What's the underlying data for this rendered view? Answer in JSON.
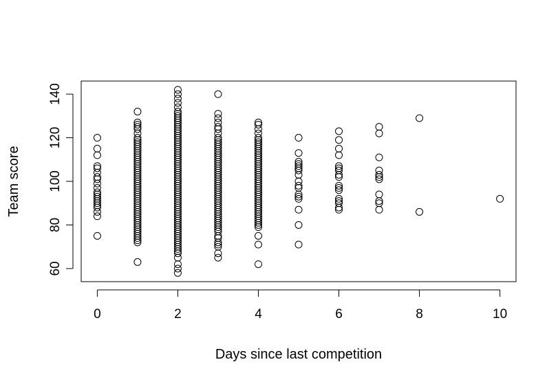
{
  "chart_data": {
    "type": "scatter",
    "title": "",
    "xlabel": "Days since last competition",
    "ylabel": "Team score",
    "xlim": [
      -0.4,
      10.4
    ],
    "ylim": [
      54,
      146
    ],
    "xticks": [
      0,
      2,
      4,
      6,
      8,
      10
    ],
    "yticks": [
      60,
      80,
      100,
      120,
      140
    ],
    "grid": false,
    "marker": "open-circle",
    "marker_color": "#000000",
    "points": [
      {
        "x": 0,
        "y": [
          75,
          84,
          86,
          88,
          89,
          90,
          91,
          92,
          93,
          94,
          95,
          97,
          99,
          101,
          102,
          104,
          106,
          107,
          112,
          115,
          120
        ]
      },
      {
        "x": 1,
        "y": [
          63,
          72,
          73,
          74,
          75,
          76,
          77,
          78,
          79,
          80,
          81,
          82,
          83,
          84,
          85,
          86,
          87,
          88,
          89,
          90,
          91,
          92,
          93,
          94,
          95,
          96,
          97,
          98,
          99,
          100,
          101,
          102,
          103,
          104,
          105,
          106,
          107,
          108,
          109,
          110,
          111,
          112,
          113,
          114,
          115,
          116,
          117,
          118,
          119,
          120,
          122,
          124,
          125,
          126,
          127,
          132
        ]
      },
      {
        "x": 2,
        "y": [
          58,
          60,
          62,
          65,
          67,
          68,
          69,
          70,
          71,
          72,
          73,
          74,
          75,
          76,
          77,
          78,
          79,
          80,
          81,
          82,
          83,
          84,
          85,
          86,
          87,
          88,
          89,
          90,
          91,
          92,
          93,
          94,
          95,
          96,
          97,
          98,
          99,
          100,
          101,
          102,
          103,
          104,
          105,
          106,
          107,
          108,
          109,
          110,
          111,
          112,
          113,
          114,
          115,
          116,
          117,
          118,
          119,
          120,
          121,
          122,
          123,
          124,
          125,
          126,
          127,
          128,
          129,
          130,
          131,
          132,
          134,
          136,
          138,
          140,
          142
        ]
      },
      {
        "x": 3,
        "y": [
          65,
          67,
          70,
          71,
          72,
          74,
          75,
          77,
          78,
          79,
          80,
          81,
          82,
          83,
          84,
          85,
          86,
          87,
          88,
          89,
          90,
          91,
          92,
          93,
          94,
          95,
          96,
          97,
          98,
          99,
          100,
          101,
          102,
          103,
          104,
          105,
          106,
          107,
          108,
          109,
          110,
          111,
          112,
          113,
          114,
          115,
          116,
          117,
          118,
          119,
          120,
          122,
          124,
          125,
          127,
          129,
          131,
          140
        ]
      },
      {
        "x": 4,
        "y": [
          62,
          71,
          75,
          79,
          80,
          81,
          82,
          83,
          84,
          85,
          86,
          87,
          88,
          89,
          90,
          91,
          92,
          93,
          94,
          95,
          96,
          97,
          98,
          99,
          100,
          101,
          102,
          103,
          104,
          105,
          106,
          107,
          108,
          109,
          110,
          111,
          112,
          113,
          114,
          115,
          116,
          117,
          118,
          119,
          120,
          122,
          124,
          126,
          127
        ]
      },
      {
        "x": 5,
        "y": [
          71,
          80,
          87,
          92,
          93,
          94,
          97,
          98,
          100,
          103,
          105,
          106,
          107,
          108,
          109,
          113,
          120
        ]
      },
      {
        "x": 6,
        "y": [
          87,
          88,
          90,
          91,
          92,
          96,
          97,
          98,
          102,
          103,
          105,
          106,
          107,
          112,
          115,
          119,
          123
        ]
      },
      {
        "x": 7,
        "y": [
          87,
          90,
          91,
          94,
          101,
          102,
          103,
          105,
          111,
          122,
          125
        ]
      },
      {
        "x": 8,
        "y": [
          86,
          129
        ]
      },
      {
        "x": 10,
        "y": [
          92
        ]
      }
    ]
  }
}
